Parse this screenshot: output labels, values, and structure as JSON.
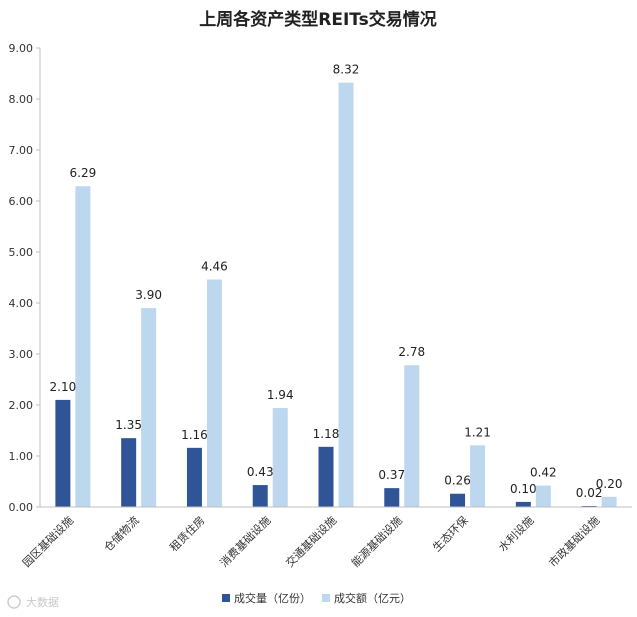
{
  "chart_data": {
    "type": "bar",
    "title": "上周各资产类型REITs交易情况",
    "categories": [
      "园区基础设施",
      "仓储物流",
      "租赁住房",
      "消费基础设施",
      "交通基础设施",
      "能源基础设施",
      "生态环保",
      "水利设施",
      "市政基础设施"
    ],
    "series": [
      {
        "name": "成交量（亿份）",
        "color": "#2f5597",
        "values": [
          2.1,
          1.35,
          1.16,
          0.43,
          1.18,
          0.37,
          0.26,
          0.1,
          0.02
        ],
        "labels": [
          "2.10",
          "1.35",
          "1.16",
          "0.43",
          "1.18",
          "0.37",
          "0.26",
          "0.10",
          "0.02"
        ]
      },
      {
        "name": "成交额（亿元）",
        "color": "#bdd7ee",
        "values": [
          6.29,
          3.9,
          4.46,
          1.94,
          8.32,
          2.78,
          1.21,
          0.42,
          0.2
        ],
        "labels": [
          "6.29",
          "3.90",
          "4.46",
          "1.94",
          "8.32",
          "2.78",
          "1.21",
          "0.42",
          "0.20"
        ]
      }
    ],
    "ylim": [
      0,
      9
    ],
    "yticks": [
      "0.00",
      "1.00",
      "2.00",
      "3.00",
      "4.00",
      "5.00",
      "6.00",
      "7.00",
      "8.00",
      "9.00"
    ],
    "grid": false,
    "legend": "bottom-center",
    "xlabel": "",
    "ylabel": ""
  },
  "watermark": "大数据"
}
